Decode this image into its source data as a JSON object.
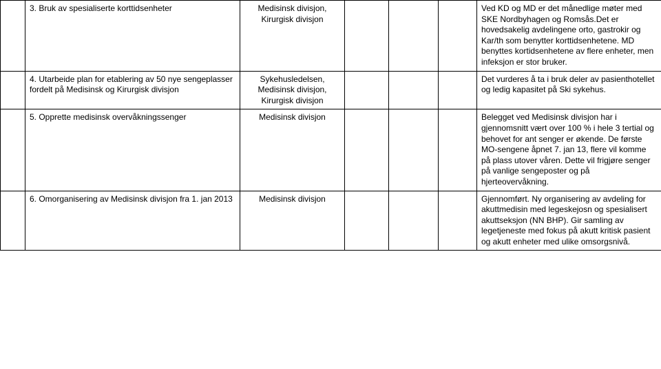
{
  "table": {
    "rows": [
      {
        "c0": "",
        "c1": "3. Bruk av spesialiserte korttidsenheter",
        "c2": "Medisinsk divisjon, Kirurgisk divisjon",
        "c3": "",
        "c4": "",
        "c5": "",
        "c6": "Ved KD og MD er det månedlige møter med SKE Nordbyhagen og Romsås.Det er hovedsakelig avdelingene orto, gastrokir og Kar/th som benytter korttidsenhetene. MD benyttes kortidsenhetene av flere enheter, men infeksjon er stor bruker."
      },
      {
        "c0": "",
        "c1": "4. Utarbeide plan for etablering av 50 nye sengeplasser fordelt på Medisinsk og Kirurgisk divisjon",
        "c2": "Sykehusledelsen, Medisinsk divisjon, Kirurgisk divisjon",
        "c3": "",
        "c4": "",
        "c5": "",
        "c6": "Det vurderes å ta i bruk deler av pasienthotellet og ledig kapasitet på Ski sykehus."
      },
      {
        "c0": "",
        "c1": "5. Opprette medisinsk overvåkningssenger",
        "c2": "Medisinsk divisjon",
        "c3": "",
        "c4": "",
        "c5": "",
        "c6": "Belegget ved Medisinsk divisjon har i gjennomsnitt vært over 100 % i hele 3 tertial og behovet for ant senger er økende. De første MO-sengene åpnet 7. jan 13, flere vil komme på plass utover våren. Dette vil frigjøre senger på vanlige sengeposter og på hjerteovervåkning."
      },
      {
        "c0": "",
        "c1": "6. Omorganisering av Medisinsk divisjon fra 1. jan 2013",
        "c2": "Medisinsk divisjon",
        "c3": "",
        "c4": "",
        "c5": "",
        "c6": "Gjennomført. Ny organisering av avdeling for akuttmedisin med legeskejosn og spesialisert akuttseksjon (NN BHP). Gir samling av legetjeneste med fokus på akutt kritisk pasient og akutt enheter med ulike omsorgsnivå."
      }
    ]
  }
}
